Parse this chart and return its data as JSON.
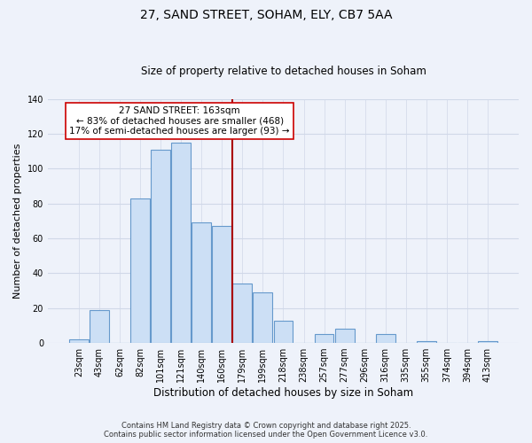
{
  "title": "27, SAND STREET, SOHAM, ELY, CB7 5AA",
  "subtitle": "Size of property relative to detached houses in Soham",
  "xlabel": "Distribution of detached houses by size in Soham",
  "ylabel": "Number of detached properties",
  "bar_labels": [
    "23sqm",
    "43sqm",
    "62sqm",
    "82sqm",
    "101sqm",
    "121sqm",
    "140sqm",
    "160sqm",
    "179sqm",
    "199sqm",
    "218sqm",
    "238sqm",
    "257sqm",
    "277sqm",
    "296sqm",
    "316sqm",
    "335sqm",
    "355sqm",
    "374sqm",
    "394sqm",
    "413sqm"
  ],
  "bar_values": [
    2,
    19,
    0,
    83,
    111,
    115,
    69,
    67,
    34,
    29,
    13,
    0,
    5,
    8,
    0,
    5,
    0,
    1,
    0,
    0,
    1
  ],
  "bar_color": "#ccdff5",
  "bar_edge_color": "#6699cc",
  "vline_color": "#aa0000",
  "annotation_title": "27 SAND STREET: 163sqm",
  "annotation_line1": "← 83% of detached houses are smaller (468)",
  "annotation_line2": "17% of semi-detached houses are larger (93) →",
  "annotation_box_color": "#ffffff",
  "annotation_box_edge": "#cc0000",
  "ylim": [
    0,
    140
  ],
  "yticks": [
    0,
    20,
    40,
    60,
    80,
    100,
    120,
    140
  ],
  "footer_line1": "Contains HM Land Registry data © Crown copyright and database right 2025.",
  "footer_line2": "Contains public sector information licensed under the Open Government Licence v3.0.",
  "bg_color": "#eef2fa",
  "grid_color": "#d0d8e8"
}
